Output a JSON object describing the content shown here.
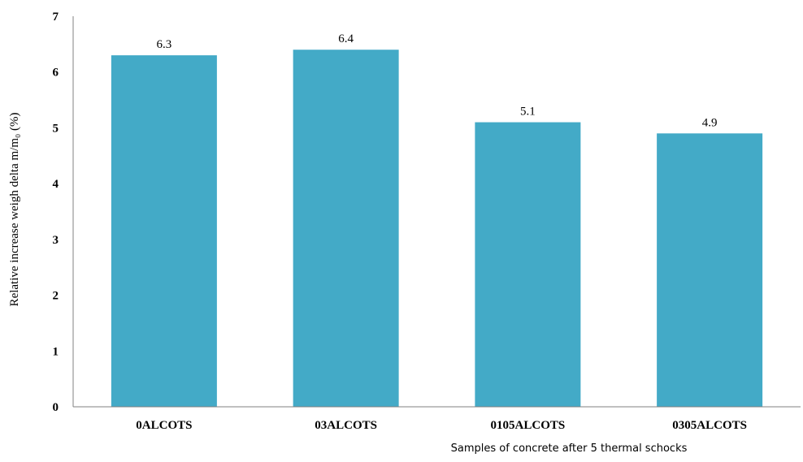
{
  "chart_data": {
    "type": "bar",
    "categories": [
      "0ALCOTS",
      "03ALCOTS",
      "0105ALCOTS",
      "0305ALCOTS"
    ],
    "values": [
      6.3,
      6.4,
      5.1,
      4.9
    ],
    "data_labels": [
      "6.3",
      "6.4",
      "5.1",
      "4.9"
    ],
    "yticks": [
      "0",
      "1",
      "2",
      "3",
      "4",
      "5",
      "6",
      "7"
    ],
    "ylim": [
      0,
      7
    ],
    "xlabel": "Samples of concrete after 5 thermal schocks",
    "ylabel": "Relative increase weigh  delta m/m₀ (%)",
    "grid": false,
    "bar_color": "#43AAC7",
    "axis_color": "#808080"
  }
}
